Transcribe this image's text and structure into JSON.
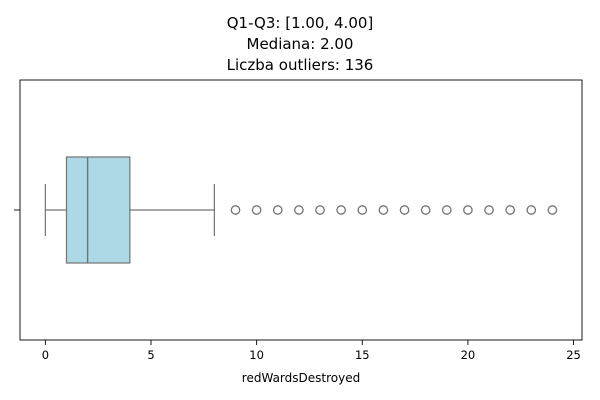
{
  "chart_data": {
    "type": "box",
    "orientation": "horizontal",
    "title_lines": [
      "Q1-Q3: [1.00, 4.00]",
      "Mediana: 2.00",
      "Liczba outliers: 136"
    ],
    "xlabel": "redWardsDestroyed",
    "xlim": [
      -1.2,
      25.4
    ],
    "xticks": [
      0,
      5,
      10,
      15,
      20,
      25
    ],
    "q1": 1.0,
    "median": 2.0,
    "q3": 4.0,
    "whisker_low": 0,
    "whisker_high": 8,
    "outliers": [
      9,
      10,
      11,
      12,
      13,
      14,
      15,
      16,
      17,
      18,
      19,
      20,
      21,
      22,
      23,
      24
    ],
    "box_color": "#add8e6",
    "line_color": "#737373"
  }
}
